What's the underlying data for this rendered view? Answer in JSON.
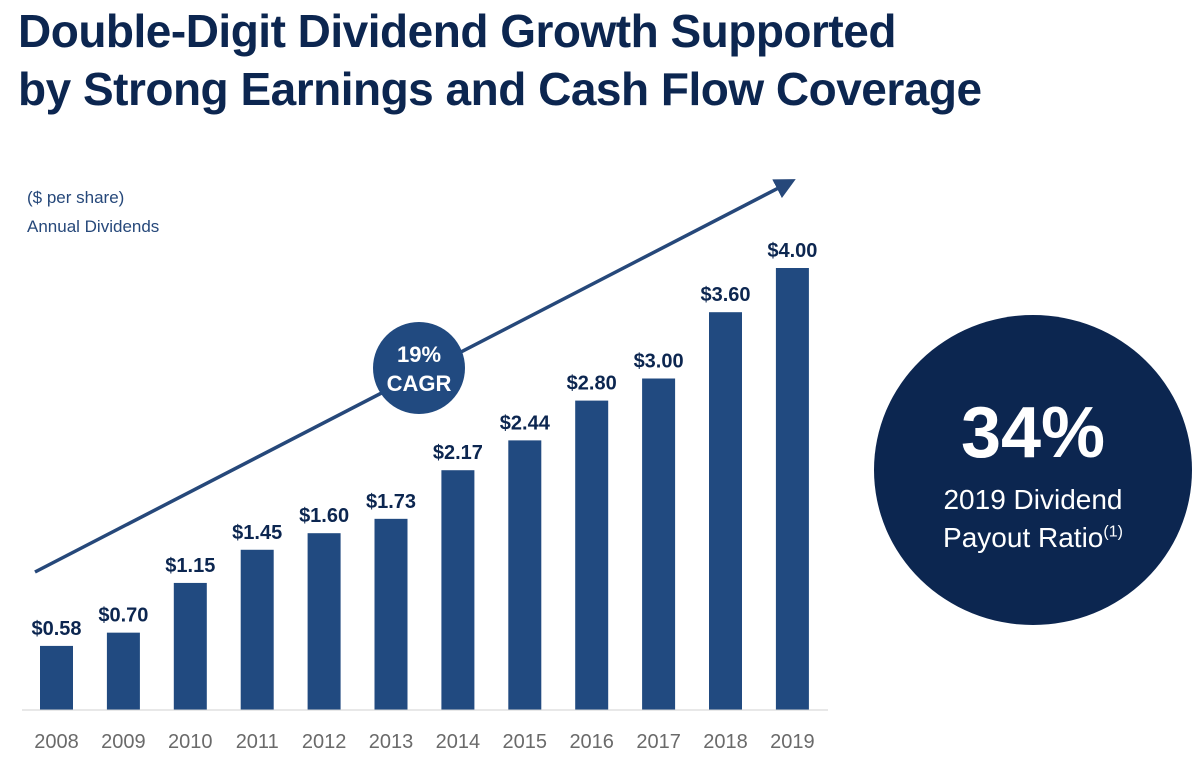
{
  "title": {
    "line1": "Double-Digit Dividend Growth Supported",
    "line2": "by Strong Earnings and Cash Flow Coverage"
  },
  "subtitle": {
    "unit": "($ per share)",
    "name": "Annual Dividends"
  },
  "cagr": {
    "line1": "19%",
    "line2": "CAGR"
  },
  "payout": {
    "value": "34%",
    "label_line1": "2019 Dividend",
    "label_line2": "Payout Ratio",
    "footnote": "(1)"
  },
  "colors": {
    "bar": "#214a80",
    "navy": "#0c2650",
    "tick": "#6a6a6a",
    "axis": "#d0d0d0"
  },
  "chart_data": {
    "type": "bar",
    "title": "Annual Dividends",
    "ylabel": "($ per share)",
    "xlabel": "",
    "categories": [
      "2008",
      "2009",
      "2010",
      "2011",
      "2012",
      "2013",
      "2014",
      "2015",
      "2016",
      "2017",
      "2018",
      "2019"
    ],
    "values": [
      0.58,
      0.7,
      1.15,
      1.45,
      1.6,
      1.73,
      2.17,
      2.44,
      2.8,
      3.0,
      3.6,
      4.0
    ],
    "value_labels": [
      "$0.58",
      "$0.70",
      "$1.15",
      "$1.45",
      "$1.60",
      "$1.73",
      "$2.17",
      "$2.44",
      "$2.80",
      "$3.00",
      "$3.60",
      "$4.00"
    ],
    "ylim": [
      0,
      4.0
    ],
    "grid": false,
    "legend": "none",
    "annotations": [
      "19% CAGR"
    ]
  }
}
